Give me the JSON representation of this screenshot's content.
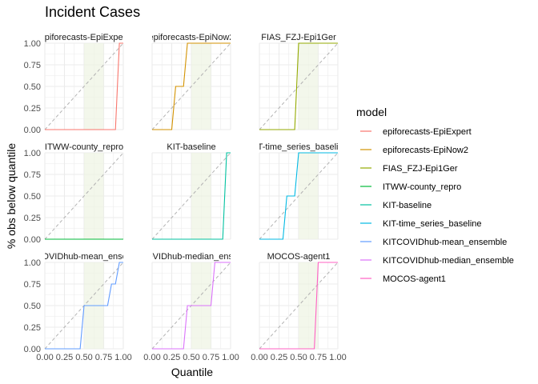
{
  "chart_data": {
    "type": "line",
    "title": "Incident Cases",
    "xlabel": "Quantile",
    "ylabel": "% obs below quantile",
    "xlim": [
      0,
      1
    ],
    "ylim": [
      0,
      1
    ],
    "x_ticks": [
      "0.00",
      "0.25",
      "0.50",
      "0.75",
      "1.00"
    ],
    "y_ticks": [
      "0.00",
      "0.25",
      "0.50",
      "0.75",
      "1.00"
    ],
    "shaded_band": [
      0.5,
      0.75
    ],
    "legend_title": "model",
    "panels": [
      {
        "name": "epiforecasts-EpiExpert",
        "strip_label": "epiforecasts-EpiExpert",
        "color": "#F8766D",
        "x": [
          0,
          0.05,
          0.9,
          0.95,
          1
        ],
        "y": [
          0,
          0,
          0,
          1,
          1
        ]
      },
      {
        "name": "epiforecasts-EpiNow2",
        "strip_label": "epiforecasts-EpiNow2",
        "color": "#D39200",
        "x": [
          0,
          0.05,
          0.25,
          0.3,
          0.4,
          0.45,
          1
        ],
        "y": [
          0,
          0,
          0,
          0.5,
          0.5,
          1,
          1
        ]
      },
      {
        "name": "FIAS_FZJ-Epi1Ger",
        "strip_label": "FIAS_FZJ-Epi1Ger",
        "color": "#93AA00",
        "x": [
          0,
          0.05,
          0.45,
          0.5,
          1
        ],
        "y": [
          0,
          0,
          0,
          1,
          1
        ]
      },
      {
        "name": "ITWW-county_repro",
        "strip_label": "ITWW-county_repro",
        "color": "#00BA38",
        "x": [
          0,
          0.05,
          1
        ],
        "y": [
          0,
          0,
          0
        ]
      },
      {
        "name": "KIT-baseline",
        "strip_label": "KIT-baseline",
        "color": "#00C19F",
        "x": [
          0,
          0.05,
          0.9,
          0.95,
          1
        ],
        "y": [
          0,
          0,
          0,
          1,
          1
        ]
      },
      {
        "name": "KIT-time_series_baseline",
        "strip_label": "KIT-time_series_baseline",
        "color": "#00B9E3",
        "x": [
          0,
          0.05,
          0.3,
          0.35,
          0.45,
          0.5,
          1
        ],
        "y": [
          0,
          0,
          0,
          0.5,
          0.5,
          1,
          1
        ]
      },
      {
        "name": "KITCOVIDhub-mean_ensemble",
        "strip_label": "KITCOVIDhub-mean_ensemble",
        "color": "#619CFF",
        "x": [
          0,
          0.05,
          0.45,
          0.5,
          0.8,
          0.85,
          0.9,
          0.95,
          1
        ],
        "y": [
          0,
          0,
          0,
          0.5,
          0.5,
          0.75,
          0.75,
          1,
          1
        ]
      },
      {
        "name": "KITCOVIDhub-median_ensemble",
        "strip_label": "KITCOVIDhub-median_ensemble",
        "color": "#DB72FB",
        "x": [
          0,
          0.05,
          0.4,
          0.45,
          0.75,
          0.8,
          0.95,
          1
        ],
        "y": [
          0,
          0,
          0,
          0.5,
          0.5,
          1,
          1,
          1
        ]
      },
      {
        "name": "MOCOS-agent1",
        "strip_label": "MOCOS-agent1",
        "color": "#FF61C3",
        "x": [
          0,
          0.05,
          0.7,
          0.75,
          1
        ],
        "y": [
          0,
          0,
          0,
          1,
          1
        ]
      }
    ]
  }
}
